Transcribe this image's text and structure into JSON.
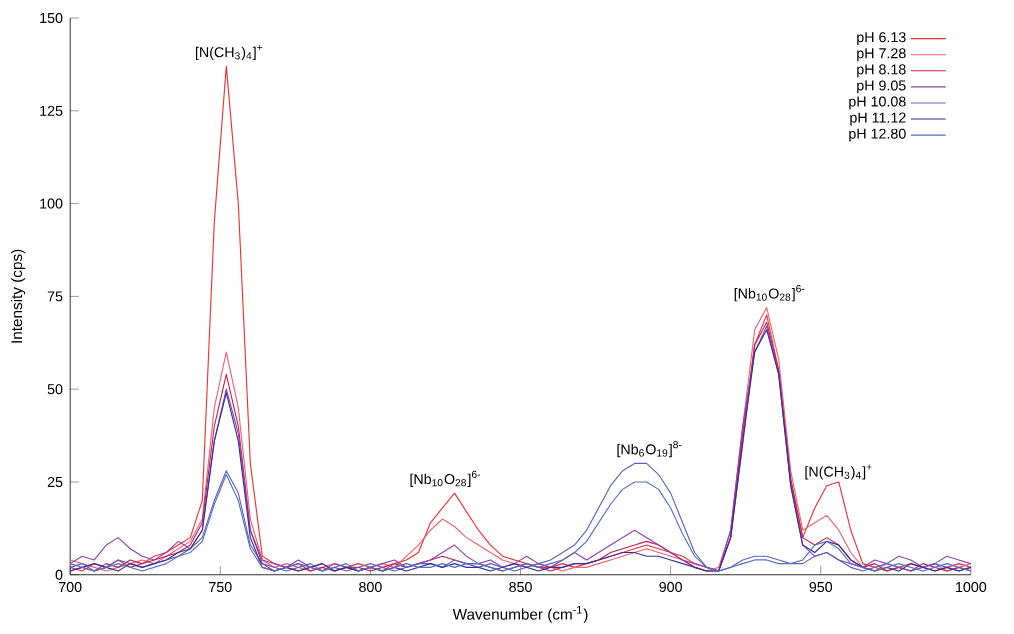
{
  "chart_data": {
    "type": "line",
    "xlabel": "Wavenumber (cm$^{-1}$)",
    "ylabel": "Intensity (cps)",
    "xlim": [
      700,
      1000
    ],
    "ylim": [
      0,
      150
    ],
    "xticks": [
      700,
      750,
      800,
      850,
      900,
      950,
      1000
    ],
    "yticks": [
      0,
      25,
      50,
      75,
      100,
      125,
      150
    ],
    "grid": false,
    "legend": "top right",
    "marker": "none",
    "line_style": "solid",
    "x": [
      700,
      704,
      708,
      712,
      716,
      720,
      724,
      728,
      732,
      736,
      740,
      744,
      748,
      752,
      756,
      760,
      764,
      768,
      772,
      776,
      780,
      784,
      788,
      792,
      796,
      800,
      804,
      808,
      812,
      816,
      820,
      824,
      828,
      832,
      836,
      840,
      844,
      848,
      852,
      856,
      860,
      864,
      868,
      872,
      876,
      880,
      884,
      888,
      892,
      896,
      900,
      904,
      908,
      912,
      916,
      920,
      924,
      928,
      932,
      936,
      940,
      944,
      948,
      952,
      956,
      960,
      964,
      968,
      972,
      976,
      980,
      984,
      988,
      992,
      996,
      1000
    ],
    "series": [
      {
        "name": "pH 6.13",
        "color": "#ee3030",
        "values": [
          2,
          1,
          3,
          2,
          4,
          2,
          3,
          5,
          6,
          8,
          10,
          20,
          95,
          137,
          100,
          30,
          5,
          3,
          2,
          1,
          2,
          3,
          1,
          2,
          3,
          2,
          1,
          3,
          4,
          6,
          14,
          18,
          22,
          17,
          12,
          8,
          5,
          4,
          3,
          2,
          2,
          3,
          2,
          3,
          4,
          5,
          6,
          7,
          8,
          7,
          6,
          5,
          3,
          2,
          1,
          10,
          35,
          62,
          70,
          55,
          25,
          10,
          18,
          24,
          25,
          12,
          3,
          2,
          1,
          2,
          3,
          2,
          1,
          2,
          3,
          2
        ]
      },
      {
        "name": "pH 7.28",
        "color": "#f06070",
        "values": [
          4,
          3,
          2,
          1,
          2,
          3,
          4,
          3,
          5,
          7,
          9,
          15,
          45,
          60,
          45,
          15,
          4,
          2,
          3,
          2,
          1,
          2,
          3,
          2,
          1,
          2,
          3,
          2,
          5,
          8,
          12,
          15,
          13,
          10,
          8,
          6,
          4,
          3,
          2,
          3,
          2,
          1,
          2,
          2,
          3,
          4,
          5,
          6,
          7,
          6,
          5,
          4,
          2,
          1,
          2,
          12,
          40,
          66,
          72,
          58,
          28,
          12,
          14,
          16,
          12,
          6,
          2,
          1,
          3,
          2,
          1,
          2,
          3,
          1,
          2,
          3
        ]
      },
      {
        "name": "pH 8.18",
        "color": "#c02050",
        "values": [
          1,
          2,
          1,
          3,
          2,
          4,
          3,
          4,
          5,
          6,
          8,
          14,
          40,
          54,
          40,
          12,
          3,
          1,
          2,
          3,
          1,
          2,
          1,
          2,
          2,
          1,
          2,
          3,
          2,
          3,
          4,
          5,
          4,
          3,
          3,
          2,
          1,
          2,
          3,
          2,
          1,
          2,
          3,
          3,
          4,
          6,
          7,
          8,
          9,
          8,
          6,
          4,
          2,
          1,
          1,
          10,
          38,
          62,
          68,
          55,
          26,
          10,
          8,
          10,
          8,
          4,
          2,
          3,
          1,
          2,
          1,
          3,
          2,
          1,
          2,
          1
        ]
      },
      {
        "name": "pH 9.05",
        "color": "#9040b0",
        "values": [
          3,
          5,
          4,
          8,
          10,
          7,
          5,
          4,
          6,
          9,
          7,
          12,
          36,
          50,
          38,
          12,
          4,
          3,
          2,
          4,
          2,
          1,
          3,
          2,
          1,
          2,
          3,
          4,
          2,
          3,
          4,
          6,
          8,
          5,
          3,
          4,
          2,
          3,
          5,
          3,
          2,
          4,
          6,
          4,
          6,
          8,
          10,
          12,
          10,
          8,
          6,
          4,
          3,
          2,
          1,
          12,
          40,
          60,
          67,
          54,
          24,
          8,
          5,
          6,
          4,
          3,
          2,
          4,
          3,
          5,
          4,
          2,
          3,
          5,
          4,
          3
        ]
      },
      {
        "name": "pH 10.08",
        "color": "#6060c0",
        "values": [
          2,
          3,
          1,
          2,
          4,
          3,
          2,
          3,
          4,
          5,
          7,
          10,
          20,
          28,
          22,
          8,
          3,
          2,
          1,
          2,
          3,
          1,
          2,
          1,
          2,
          3,
          2,
          1,
          2,
          3,
          3,
          2,
          4,
          3,
          2,
          3,
          2,
          1,
          2,
          3,
          4,
          6,
          8,
          12,
          18,
          24,
          28,
          30,
          30,
          27,
          22,
          14,
          6,
          2,
          1,
          2,
          4,
          5,
          5,
          4,
          3,
          3,
          5,
          6,
          4,
          2,
          1,
          2,
          3,
          2,
          1,
          2,
          3,
          2,
          1,
          2
        ]
      },
      {
        "name": "pH 11.12",
        "color": "#3030a0",
        "values": [
          1,
          2,
          3,
          2,
          1,
          3,
          2,
          3,
          4,
          6,
          7,
          12,
          36,
          49,
          36,
          10,
          2,
          1,
          2,
          1,
          2,
          3,
          1,
          2,
          1,
          2,
          1,
          2,
          1,
          2,
          3,
          2,
          3,
          2,
          2,
          1,
          2,
          3,
          2,
          1,
          2,
          2,
          3,
          3,
          4,
          5,
          6,
          6,
          5,
          5,
          4,
          3,
          2,
          1,
          1,
          10,
          36,
          60,
          66,
          54,
          24,
          8,
          6,
          9,
          8,
          4,
          2,
          1,
          2,
          1,
          3,
          2,
          1,
          2,
          1,
          2
        ]
      },
      {
        "name": "pH 12.80",
        "color": "#5070c0",
        "values": [
          3,
          2,
          1,
          2,
          3,
          2,
          1,
          2,
          3,
          5,
          6,
          9,
          19,
          27,
          20,
          7,
          2,
          1,
          2,
          3,
          2,
          1,
          2,
          3,
          1,
          2,
          1,
          2,
          3,
          2,
          2,
          3,
          2,
          3,
          3,
          2,
          1,
          2,
          3,
          2,
          3,
          4,
          6,
          9,
          14,
          19,
          23,
          25,
          25,
          23,
          18,
          11,
          5,
          2,
          1,
          2,
          3,
          4,
          4,
          3,
          3,
          4,
          8,
          9,
          7,
          3,
          2,
          1,
          2,
          3,
          2,
          1,
          2,
          3,
          2,
          1
        ]
      }
    ],
    "annotations": [
      {
        "text": "[N(CH$_{3}$)$_{4}$]$^{+}$",
        "x": 753,
        "y": 138
      },
      {
        "text": "[Nb$_{10}$O$_{28}$]$^{6-}$",
        "x": 825,
        "y": 23
      },
      {
        "text": "[Nb$_{6}$O$_{19}$]$^{8-}$",
        "x": 893,
        "y": 31
      },
      {
        "text": "[Nb$_{10}$O$_{28}$]$^{6-}$",
        "x": 933,
        "y": 73
      },
      {
        "text": "[N(CH$_{3}$)$_{4}$]$^{+}$",
        "x": 956,
        "y": 25
      }
    ]
  }
}
